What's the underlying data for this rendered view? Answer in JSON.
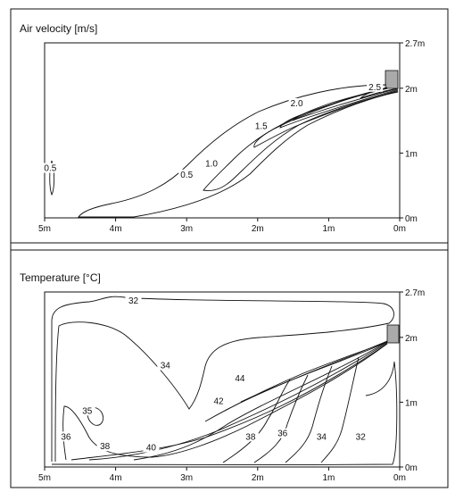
{
  "chart_data": [
    {
      "type": "contour",
      "title": "Air velocity [m/s]",
      "xlabel": "",
      "ylabel": "",
      "x_ticks": [
        "5m",
        "4m",
        "3m",
        "2m",
        "1m",
        "0m"
      ],
      "y_ticks": [
        "0m",
        "1m",
        "2m",
        "2.7m"
      ],
      "xlim": [
        5,
        0
      ],
      "ylim": [
        0,
        2.7
      ],
      "grid": false,
      "contour_labels": [
        {
          "label": "0.5",
          "x": 4.92,
          "y": 0.75
        },
        {
          "label": "0.5",
          "x": 3.0,
          "y": 0.65
        },
        {
          "label": "1.0",
          "x": 2.65,
          "y": 0.82
        },
        {
          "label": "1.5",
          "x": 1.95,
          "y": 1.4
        },
        {
          "label": "2.0",
          "x": 1.45,
          "y": 1.75
        },
        {
          "label": "2.5",
          "x": 0.35,
          "y": 2.0
        }
      ]
    },
    {
      "type": "contour",
      "title": "Temperature [°C]",
      "xlabel": "",
      "ylabel": "",
      "x_ticks": [
        "5m",
        "4m",
        "3m",
        "2m",
        "1m",
        "0m"
      ],
      "y_ticks": [
        "0m",
        "1m",
        "2m",
        "2.7m"
      ],
      "xlim": [
        5,
        0
      ],
      "ylim": [
        0,
        2.7
      ],
      "grid": false,
      "contour_labels": [
        {
          "label": "32",
          "x": 3.75,
          "y": 2.55
        },
        {
          "label": "34",
          "x": 3.3,
          "y": 1.55
        },
        {
          "label": "35",
          "x": 4.4,
          "y": 0.85
        },
        {
          "label": "36",
          "x": 4.7,
          "y": 0.45
        },
        {
          "label": "38",
          "x": 4.15,
          "y": 0.3
        },
        {
          "label": "40",
          "x": 3.5,
          "y": 0.28
        },
        {
          "label": "42",
          "x": 2.55,
          "y": 1.0
        },
        {
          "label": "44",
          "x": 2.25,
          "y": 1.35
        },
        {
          "label": "38",
          "x": 2.1,
          "y": 0.45
        },
        {
          "label": "36",
          "x": 1.65,
          "y": 0.5
        },
        {
          "label": "34",
          "x": 1.1,
          "y": 0.45
        },
        {
          "label": "32",
          "x": 0.55,
          "y": 0.45
        }
      ]
    }
  ]
}
